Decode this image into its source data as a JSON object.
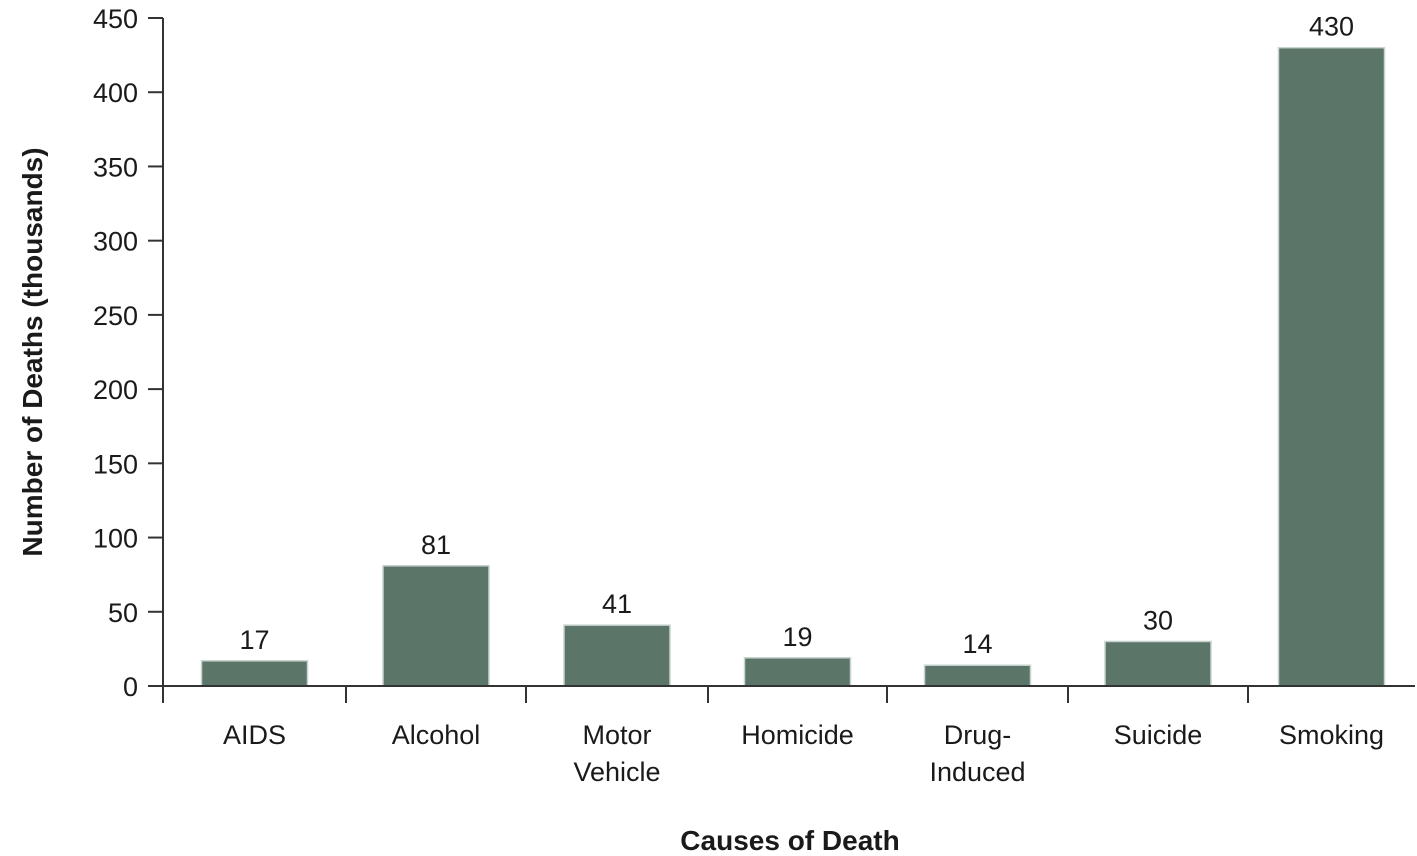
{
  "chart_data": {
    "type": "bar",
    "title": "",
    "xlabel": "Causes of Death",
    "ylabel": "Number of Deaths (thousands)",
    "categories": [
      [
        "AIDS"
      ],
      [
        "Alcohol"
      ],
      [
        "Motor",
        "Vehicle"
      ],
      [
        "Homicide"
      ],
      [
        "Drug-",
        "Induced"
      ],
      [
        "Suicide"
      ],
      [
        "Smoking"
      ]
    ],
    "values": [
      17,
      81,
      41,
      19,
      14,
      30,
      430
    ],
    "ylim": [
      0,
      450
    ],
    "yticks": [
      0,
      50,
      100,
      150,
      200,
      250,
      300,
      350,
      400,
      450
    ],
    "grid": false,
    "legend": "none",
    "bar_color": "#5b7669"
  }
}
